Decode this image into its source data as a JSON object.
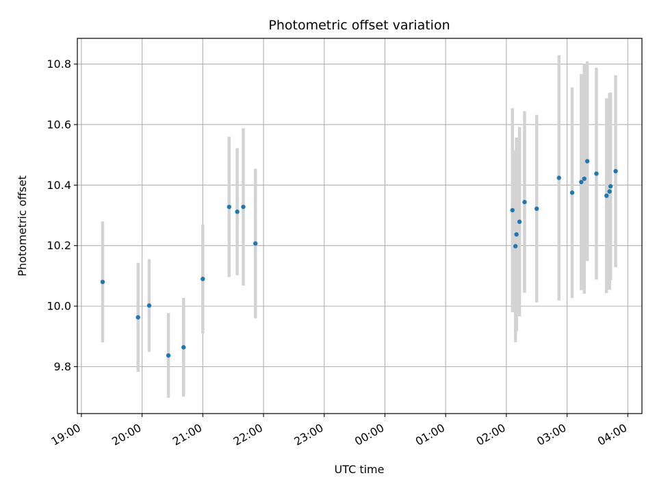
{
  "chart_data": {
    "type": "scatter",
    "title": "Photometric offset variation",
    "xlabel": "UTC time",
    "ylabel": "Photometric offset",
    "xaxis": "time",
    "xlim": [
      "18:56",
      "04:14"
    ],
    "ylim": [
      9.645,
      10.885
    ],
    "grid": true,
    "legend": "none",
    "x_ticks": [
      "19:00",
      "20:00",
      "21:00",
      "22:00",
      "23:00",
      "00:00",
      "01:00",
      "02:00",
      "03:00",
      "04:00"
    ],
    "y_ticks": [
      "9.8",
      "10.0",
      "10.2",
      "10.4",
      "10.6",
      "10.8"
    ],
    "colors": {
      "point": "#1f77b4",
      "error_bar": "#d3d3d3",
      "grid": "#b0b0b0"
    },
    "points": [
      {
        "x": "19:21",
        "y": 10.08,
        "err": 0.2
      },
      {
        "x": "19:56",
        "y": 9.963,
        "err": 0.18
      },
      {
        "x": "20:07",
        "y": 10.002,
        "err": 0.153
      },
      {
        "x": "20:26",
        "y": 9.837,
        "err": 0.14
      },
      {
        "x": "20:41",
        "y": 9.864,
        "err": 0.163
      },
      {
        "x": "21:00",
        "y": 10.09,
        "err": 0.18
      },
      {
        "x": "21:26",
        "y": 10.328,
        "err": 0.232
      },
      {
        "x": "21:34",
        "y": 10.312,
        "err": 0.21
      },
      {
        "x": "21:40",
        "y": 10.328,
        "err": 0.26
      },
      {
        "x": "21:52",
        "y": 10.207,
        "err": 0.247
      },
      {
        "x": "02:06",
        "y": 10.317,
        "err": 0.337
      },
      {
        "x": "02:09",
        "y": 10.198,
        "err": 0.317
      },
      {
        "x": "02:10",
        "y": 10.237,
        "err": 0.32
      },
      {
        "x": "02:13",
        "y": 10.279,
        "err": 0.313
      },
      {
        "x": "02:18",
        "y": 10.344,
        "err": 0.3
      },
      {
        "x": "02:30",
        "y": 10.322,
        "err": 0.31
      },
      {
        "x": "02:52",
        "y": 10.424,
        "err": 0.405
      },
      {
        "x": "03:05",
        "y": 10.375,
        "err": 0.348
      },
      {
        "x": "03:14",
        "y": 10.41,
        "err": 0.357
      },
      {
        "x": "03:17",
        "y": 10.421,
        "err": 0.38
      },
      {
        "x": "03:20",
        "y": 10.479,
        "err": 0.33
      },
      {
        "x": "03:29",
        "y": 10.438,
        "err": 0.35
      },
      {
        "x": "03:39",
        "y": 10.365,
        "err": 0.322
      },
      {
        "x": "03:42",
        "y": 10.379,
        "err": 0.325
      },
      {
        "x": "03:43",
        "y": 10.396,
        "err": 0.31
      },
      {
        "x": "03:48",
        "y": 10.446,
        "err": 0.317
      }
    ]
  }
}
